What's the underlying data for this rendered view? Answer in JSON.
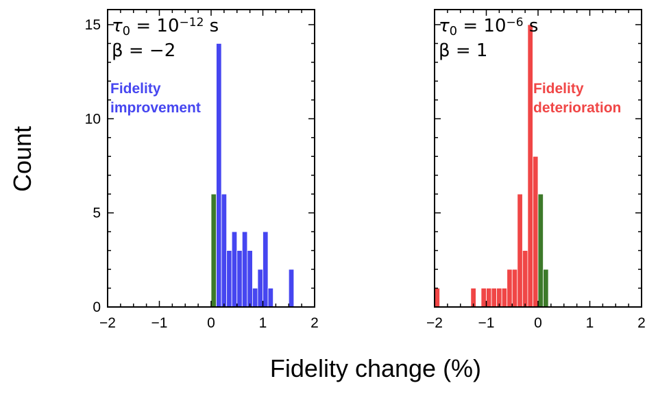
{
  "chart_data": [
    {
      "type": "bar",
      "bin_width": 0.1,
      "xlim": [
        -2,
        2
      ],
      "ylim": [
        0,
        15.8
      ],
      "xticks": [
        "−2",
        "−1",
        "0",
        "1",
        "2"
      ],
      "yticks": [
        "0",
        "5",
        "10",
        "15"
      ],
      "series": [
        {
          "color": "#3d7a2a",
          "bins": [
            {
              "x": 0.0,
              "count": 6
            }
          ]
        },
        {
          "color": "#4646f0",
          "bins": [
            {
              "x": 0.1,
              "count": 14
            },
            {
              "x": 0.2,
              "count": 6
            },
            {
              "x": 0.3,
              "count": 3
            },
            {
              "x": 0.4,
              "count": 4
            },
            {
              "x": 0.5,
              "count": 3
            },
            {
              "x": 0.6,
              "count": 4
            },
            {
              "x": 0.7,
              "count": 3
            },
            {
              "x": 0.8,
              "count": 1
            },
            {
              "x": 0.9,
              "count": 2
            },
            {
              "x": 1.0,
              "count": 4
            },
            {
              "x": 1.1,
              "count": 1
            },
            {
              "x": 1.2,
              "count": 0
            },
            {
              "x": 1.3,
              "count": 0
            },
            {
              "x": 1.4,
              "count": 0
            },
            {
              "x": 1.5,
              "count": 2
            }
          ]
        }
      ],
      "annotation": {
        "tau_base": "τ",
        "tau_sub": "0",
        "tau_mid": " = 10",
        "tau_exp": "−12",
        "tau_unit": " s",
        "beta": "β = −2"
      },
      "callout": {
        "line1": "Fidelity",
        "line2": "improvement",
        "color": "#4646f0"
      }
    },
    {
      "type": "bar",
      "bin_width": 0.1,
      "xlim": [
        -2,
        2
      ],
      "ylim": [
        0,
        15.8
      ],
      "xticks": [
        "−2",
        "−1",
        "0",
        "1",
        "2"
      ],
      "yticks": [
        "0",
        "5",
        "10",
        "15"
      ],
      "series": [
        {
          "color": "#f04646",
          "bins": [
            {
              "x": -2.0,
              "count": 1
            },
            {
              "x": -1.3,
              "count": 1
            },
            {
              "x": -1.1,
              "count": 1
            },
            {
              "x": -1.0,
              "count": 1
            },
            {
              "x": -0.9,
              "count": 1
            },
            {
              "x": -0.8,
              "count": 1
            },
            {
              "x": -0.7,
              "count": 1
            },
            {
              "x": -0.6,
              "count": 2
            },
            {
              "x": -0.5,
              "count": 2
            },
            {
              "x": -0.4,
              "count": 6
            },
            {
              "x": -0.3,
              "count": 3
            },
            {
              "x": -0.2,
              "count": 15
            },
            {
              "x": -0.1,
              "count": 8
            }
          ]
        },
        {
          "color": "#3d7a2a",
          "bins": [
            {
              "x": 0.0,
              "count": 6
            },
            {
              "x": 0.1,
              "count": 2
            }
          ]
        }
      ],
      "annotation": {
        "tau_base": "τ",
        "tau_sub": "0",
        "tau_mid": " = 10",
        "tau_exp": "−6",
        "tau_unit": " s",
        "beta": "β = 1"
      },
      "callout": {
        "line1": "Fidelity",
        "line2": "deterioration",
        "color": "#f04646"
      }
    }
  ],
  "xlabel": "Fidelity change (%)",
  "ylabel": "Count"
}
